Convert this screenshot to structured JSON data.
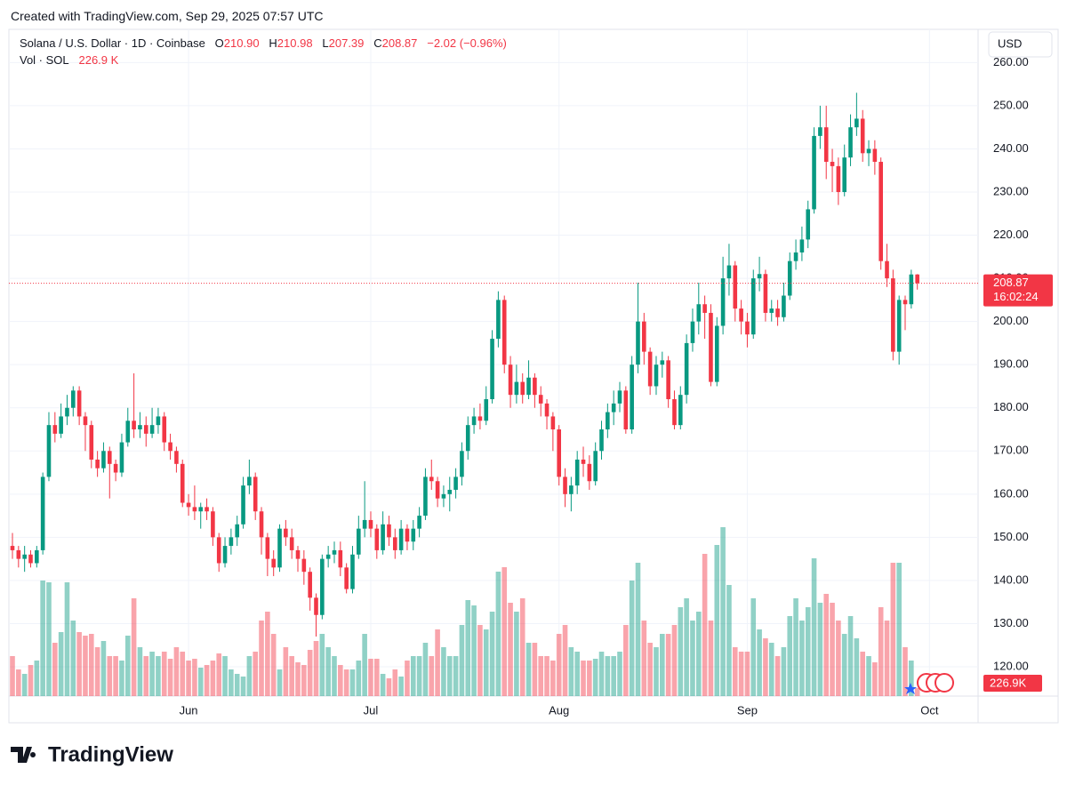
{
  "created": "Created with TradingView.com, Sep 29, 2025 07:57 UTC",
  "brand": "TradingView",
  "chart_data": {
    "type": "candlestick",
    "legend": {
      "symbol": "Solana / U.S. Dollar · 1D · Coinbase",
      "o_label": "O",
      "o": "210.90",
      "h_label": "H",
      "h": "210.98",
      "l_label": "L",
      "l": "207.39",
      "c_label": "C",
      "c": "208.87",
      "change": "−2.02 (−0.96%)",
      "vol_title": "Vol · SOL",
      "vol_value": "226.9 K"
    },
    "currency": "USD",
    "last_price_tag": "208.87",
    "countdown": "16:02:24",
    "last_volume_tag": "226.9K",
    "up_color": "#089981",
    "down_color": "#f23645",
    "ylim": [
      113.2,
      267.7
    ],
    "yticks": [
      {
        "value": 120,
        "label": "120.00"
      },
      {
        "value": 130,
        "label": "130.00"
      },
      {
        "value": 140,
        "label": "140.00"
      },
      {
        "value": 150,
        "label": "150.00"
      },
      {
        "value": 160,
        "label": "160.00"
      },
      {
        "value": 170,
        "label": "170.00"
      },
      {
        "value": 180,
        "label": "180.00"
      },
      {
        "value": 190,
        "label": "190.00"
      },
      {
        "value": 200,
        "label": "200.00"
      },
      {
        "value": 210,
        "label": "210.00"
      },
      {
        "value": 220,
        "label": "220.00"
      },
      {
        "value": 230,
        "label": "230.00"
      },
      {
        "value": 240,
        "label": "240.00"
      },
      {
        "value": 250,
        "label": "250.00"
      },
      {
        "value": 260,
        "label": "260.00"
      }
    ],
    "xticks": [
      {
        "value": 29,
        "label": "Jun"
      },
      {
        "value": 59,
        "label": "Jul"
      },
      {
        "value": 90,
        "label": "Aug"
      },
      {
        "value": 121,
        "label": "Sep"
      },
      {
        "value": 151,
        "label": "Oct"
      }
    ],
    "grid": true,
    "candles": {
      "open": [
        148,
        147,
        145,
        146,
        144,
        147,
        164,
        176,
        174,
        178,
        180,
        184,
        178,
        176,
        168,
        166,
        170,
        167,
        165,
        172,
        177,
        175,
        176,
        174,
        176,
        178,
        172,
        170,
        167,
        158,
        157,
        156,
        157,
        156,
        150,
        144,
        148,
        150,
        153,
        162,
        164,
        156,
        150,
        145,
        143,
        152,
        150,
        147,
        145,
        142,
        136,
        132,
        145,
        146,
        147,
        143,
        138,
        146,
        152,
        154,
        152,
        147,
        153,
        150,
        147,
        152,
        149,
        152,
        155,
        164,
        163,
        159,
        160,
        161,
        164,
        170,
        176,
        178,
        177,
        182,
        196,
        205,
        190,
        183,
        186,
        183,
        187,
        183,
        181,
        178,
        175,
        164,
        160,
        162,
        168,
        167,
        163,
        170,
        175,
        179,
        181,
        184,
        175,
        190,
        200,
        193,
        185,
        190,
        191,
        182,
        176,
        183,
        195,
        200,
        204,
        202,
        186,
        199,
        210,
        213,
        203,
        200,
        197,
        210,
        211,
        202,
        203,
        201,
        206,
        214,
        216,
        219,
        226,
        243,
        245,
        237,
        236,
        230,
        238,
        245,
        247,
        239,
        240,
        237,
        214,
        210,
        193,
        205,
        204,
        210.9
      ],
      "high": [
        151,
        148,
        148,
        147,
        148,
        165,
        179,
        179,
        181,
        183,
        185,
        185,
        179,
        177,
        170,
        172,
        171,
        168,
        174,
        180,
        188,
        179,
        178,
        180,
        180,
        179,
        174,
        171,
        168,
        160,
        162,
        158,
        159,
        157,
        151,
        150,
        152,
        155,
        164,
        168,
        165,
        157,
        151,
        147,
        153,
        154,
        152,
        148,
        147,
        143,
        137,
        146,
        148,
        149,
        149,
        144,
        148,
        155,
        163,
        156,
        153,
        156,
        155,
        152,
        154,
        153,
        154,
        157,
        166,
        168,
        164,
        162,
        164,
        166,
        172,
        178,
        180,
        181,
        185,
        198,
        207,
        206,
        192,
        190,
        188,
        191,
        188,
        185,
        182,
        179,
        176,
        166,
        164,
        170,
        171,
        169,
        172,
        177,
        181,
        184,
        186,
        185,
        192,
        209,
        202,
        194,
        192,
        193,
        192,
        184,
        185,
        197,
        203,
        209,
        206,
        204,
        201,
        215,
        218,
        214,
        205,
        202,
        212,
        215,
        212,
        205,
        205,
        209,
        216,
        219,
        222,
        228,
        245,
        250,
        250,
        240,
        238,
        241,
        248,
        253,
        249,
        242,
        242,
        238,
        218,
        212,
        206,
        206,
        212,
        210.98
      ],
      "low": [
        145,
        143,
        142,
        143,
        143,
        146,
        163,
        172,
        173,
        176,
        178,
        176,
        170,
        166,
        164,
        165,
        159,
        163,
        164,
        171,
        173,
        173,
        171,
        173,
        174,
        170,
        168,
        165,
        157,
        155,
        154,
        152,
        154,
        148,
        142,
        143,
        146,
        148,
        152,
        160,
        154,
        146,
        141,
        141,
        142,
        148,
        145,
        142,
        139,
        133,
        127,
        131,
        143,
        144,
        141,
        137,
        137,
        145,
        150,
        150,
        145,
        146,
        148,
        145,
        146,
        147,
        147,
        150,
        154,
        161,
        157,
        157,
        156,
        159,
        162,
        168,
        174,
        175,
        176,
        181,
        194,
        188,
        180,
        181,
        181,
        182,
        180,
        178,
        175,
        170,
        162,
        157,
        156,
        160,
        164,
        161,
        162,
        168,
        173,
        176,
        179,
        174,
        174,
        188,
        190,
        183,
        183,
        187,
        180,
        175,
        175,
        181,
        193,
        197,
        196,
        185,
        185,
        197,
        206,
        200,
        197,
        194,
        196,
        207,
        200,
        200,
        199,
        200,
        205,
        212,
        214,
        217,
        225,
        240,
        233,
        230,
        227,
        229,
        236,
        243,
        237,
        236,
        234,
        212,
        208,
        191,
        190,
        198,
        203,
        207.39
      ],
      "close": [
        147,
        145,
        146,
        144,
        147,
        164,
        176,
        174,
        178,
        180,
        184,
        178,
        176,
        168,
        166,
        170,
        167,
        165,
        172,
        177,
        175,
        176,
        174,
        176,
        178,
        172,
        170,
        167,
        158,
        157,
        156,
        157,
        156,
        150,
        144,
        148,
        150,
        153,
        162,
        164,
        156,
        150,
        145,
        143,
        152,
        150,
        147,
        145,
        142,
        136,
        132,
        145,
        146,
        147,
        143,
        138,
        146,
        152,
        154,
        152,
        147,
        153,
        150,
        147,
        152,
        149,
        152,
        155,
        164,
        163,
        159,
        160,
        161,
        164,
        170,
        176,
        178,
        177,
        182,
        196,
        205,
        190,
        183,
        186,
        183,
        187,
        183,
        181,
        178,
        175,
        164,
        160,
        162,
        168,
        167,
        163,
        170,
        175,
        179,
        181,
        184,
        175,
        190,
        200,
        193,
        185,
        190,
        191,
        182,
        176,
        183,
        195,
        200,
        204,
        202,
        186,
        199,
        210,
        213,
        203,
        200,
        197,
        210,
        211,
        202,
        203,
        201,
        206,
        214,
        216,
        219,
        226,
        243,
        245,
        237,
        236,
        230,
        238,
        245,
        247,
        239,
        240,
        237,
        214,
        210,
        193,
        205,
        204,
        210.9,
        208.87
      ]
    },
    "volume": [
      1125000,
      750000,
      625000,
      875000,
      1000000,
      3250000,
      3200000,
      1500000,
      1800000,
      3200000,
      2125000,
      1800000,
      1700000,
      1750000,
      1375000,
      1550000,
      1125000,
      1125000,
      1000000,
      1700000,
      2750000,
      1375000,
      1125000,
      1250000,
      1125000,
      1250000,
      1050000,
      1375000,
      1250000,
      1000000,
      1050000,
      800000,
      875000,
      1000000,
      1200000,
      1125000,
      750000,
      625000,
      550000,
      1125000,
      1250000,
      2125000,
      2375000,
      1750000,
      750000,
      1375000,
      1125000,
      950000,
      875000,
      1300000,
      1550000,
      1750000,
      1375000,
      1125000,
      875000,
      750000,
      750000,
      1000000,
      1750000,
      1050000,
      1050000,
      625000,
      500000,
      750000,
      550000,
      1000000,
      1125000,
      1125000,
      1500000,
      1125000,
      1875000,
      1375000,
      1125000,
      1125000,
      2000000,
      2700000,
      2550000,
      2000000,
      1875000,
      2375000,
      3500000,
      3625000,
      2625000,
      2375000,
      2750000,
      1500000,
      1500000,
      1125000,
      1125000,
      1000000,
      1750000,
      2000000,
      1375000,
      1250000,
      1000000,
      1000000,
      1050000,
      1250000,
      1125000,
      1125000,
      1250000,
      2000000,
      3250000,
      3750000,
      2125000,
      1500000,
      1375000,
      1750000,
      1750000,
      2000000,
      2500000,
      2750000,
      2125000,
      2375000,
      4000000,
      2125000,
      4250000,
      4750000,
      3125000,
      1375000,
      1250000,
      1250000,
      2750000,
      1875000,
      1625000,
      1500000,
      1125000,
      1375000,
      2250000,
      2750000,
      2125000,
      2500000,
      3875000,
      2625000,
      2875000,
      2625000,
      2125000,
      1750000,
      2250000,
      1625000,
      1250000,
      1125000,
      950000,
      2500000,
      2125000,
      3750000,
      3750000,
      1375000,
      1000000,
      226900
    ]
  }
}
